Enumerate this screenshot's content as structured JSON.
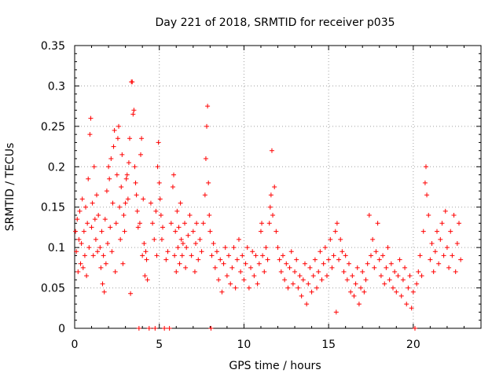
{
  "chart_data": {
    "type": "scatter",
    "title": "Day 221 of 2018, SRMTID for receiver p035",
    "xlabel": "GPS time / hours",
    "ylabel": "SRMTID / TECUs",
    "xlim": [
      0,
      24
    ],
    "ylim": [
      0,
      0.35
    ],
    "xticks": [
      "0",
      "5",
      "10",
      "15",
      "20"
    ],
    "yticks": [
      "0",
      "0.05",
      "0.1",
      "0.15",
      "0.2",
      "0.25",
      "0.3",
      "0.35"
    ],
    "grid": true,
    "marker": "plus",
    "color": "#ff0000",
    "series": [
      {
        "name": "SRMTID",
        "points": [
          [
            0.05,
            0.12
          ],
          [
            0.1,
            0.095
          ],
          [
            0.15,
            0.135
          ],
          [
            0.2,
            0.07
          ],
          [
            0.25,
            0.11
          ],
          [
            0.3,
            0.145
          ],
          [
            0.35,
            0.08
          ],
          [
            0.4,
            0.105
          ],
          [
            0.45,
            0.16
          ],
          [
            0.5,
            0.075
          ],
          [
            0.55,
            0.12
          ],
          [
            0.6,
            0.09
          ],
          [
            0.65,
            0.15
          ],
          [
            0.7,
            0.065
          ],
          [
            0.75,
            0.13
          ],
          [
            0.8,
            0.185
          ],
          [
            0.85,
            0.1
          ],
          [
            0.9,
            0.24
          ],
          [
            0.95,
            0.26
          ],
          [
            1.0,
            0.125
          ],
          [
            1.05,
            0.155
          ],
          [
            1.1,
            0.09
          ],
          [
            1.15,
            0.2
          ],
          [
            1.2,
            0.135
          ],
          [
            1.25,
            0.11
          ],
          [
            1.3,
            0.165
          ],
          [
            1.35,
            0.095
          ],
          [
            1.4,
            0.14
          ],
          [
            1.5,
            0.1
          ],
          [
            1.55,
            0.075
          ],
          [
            1.6,
            0.12
          ],
          [
            1.65,
            0.055
          ],
          [
            1.7,
            0.09
          ],
          [
            1.75,
            0.045
          ],
          [
            1.8,
            0.135
          ],
          [
            1.85,
            0.08
          ],
          [
            1.9,
            0.17
          ],
          [
            1.95,
            0.105
          ],
          [
            2.0,
            0.2
          ],
          [
            2.05,
            0.185
          ],
          [
            2.1,
            0.125
          ],
          [
            2.15,
            0.21
          ],
          [
            2.2,
            0.095
          ],
          [
            2.25,
            0.155
          ],
          [
            2.3,
            0.225
          ],
          [
            2.35,
            0.245
          ],
          [
            2.4,
            0.07
          ],
          [
            2.45,
            0.13
          ],
          [
            2.5,
            0.19
          ],
          [
            2.55,
            0.235
          ],
          [
            2.6,
            0.25
          ],
          [
            2.65,
            0.15
          ],
          [
            2.7,
            0.11
          ],
          [
            2.75,
            0.175
          ],
          [
            2.8,
            0.215
          ],
          [
            2.85,
            0.08
          ],
          [
            2.9,
            0.14
          ],
          [
            2.95,
            0.12
          ],
          [
            3.0,
            0.155
          ],
          [
            3.05,
            0.185
          ],
          [
            3.1,
            0.19
          ],
          [
            3.15,
            0.16
          ],
          [
            3.2,
            0.205
          ],
          [
            3.25,
            0.235
          ],
          [
            3.3,
            0.043
          ],
          [
            3.35,
            0.305
          ],
          [
            3.4,
            0.305
          ],
          [
            3.45,
            0.265
          ],
          [
            3.5,
            0.27
          ],
          [
            3.55,
            0.2
          ],
          [
            3.6,
            0.18
          ],
          [
            3.65,
            0.165
          ],
          [
            3.7,
            0.145
          ],
          [
            3.75,
            0.125
          ],
          [
            3.8,
            0.0
          ],
          [
            3.85,
            0.13
          ],
          [
            3.9,
            0.215
          ],
          [
            3.95,
            0.235
          ],
          [
            4.0,
            0.09
          ],
          [
            4.05,
            0.16
          ],
          [
            4.1,
            0.105
          ],
          [
            4.15,
            0.065
          ],
          [
            4.2,
            0.095
          ],
          [
            4.25,
            0.085
          ],
          [
            4.3,
            0.06
          ],
          [
            4.4,
            0.0
          ],
          [
            4.5,
            0.155
          ],
          [
            4.6,
            0.13
          ],
          [
            4.7,
            0.11
          ],
          [
            4.75,
            0.0
          ],
          [
            4.8,
            0.145
          ],
          [
            4.85,
            0.09
          ],
          [
            4.9,
            0.2
          ],
          [
            4.95,
            0.23
          ],
          [
            5.0,
            0.18
          ],
          [
            5.05,
            0.16
          ],
          [
            5.1,
            0.14
          ],
          [
            5.15,
            0.11
          ],
          [
            5.2,
            0.125
          ],
          [
            5.3,
            0.0
          ],
          [
            5.4,
            0.085
          ],
          [
            5.5,
            0.095
          ],
          [
            5.6,
            0.0
          ],
          [
            5.7,
            0.13
          ],
          [
            5.8,
            0.175
          ],
          [
            5.85,
            0.19
          ],
          [
            5.9,
            0.09
          ],
          [
            5.95,
            0.12
          ],
          [
            6.0,
            0.07
          ],
          [
            6.05,
            0.145
          ],
          [
            6.1,
            0.1
          ],
          [
            6.15,
            0.125
          ],
          [
            6.2,
            0.08
          ],
          [
            6.25,
            0.155
          ],
          [
            6.3,
            0.11
          ],
          [
            6.35,
            0.09
          ],
          [
            6.4,
            0.105
          ],
          [
            6.5,
            0.13
          ],
          [
            6.55,
            0.075
          ],
          [
            6.6,
            0.1
          ],
          [
            6.7,
            0.115
          ],
          [
            6.8,
            0.14
          ],
          [
            6.9,
            0.09
          ],
          [
            7.0,
            0.12
          ],
          [
            7.1,
            0.07
          ],
          [
            7.15,
            0.105
          ],
          [
            7.2,
            0.13
          ],
          [
            7.3,
            0.085
          ],
          [
            7.4,
            0.11
          ],
          [
            7.5,
            0.095
          ],
          [
            7.6,
            0.13
          ],
          [
            7.7,
            0.165
          ],
          [
            7.75,
            0.21
          ],
          [
            7.8,
            0.25
          ],
          [
            7.85,
            0.275
          ],
          [
            7.9,
            0.18
          ],
          [
            7.95,
            0.14
          ],
          [
            8.0,
            0.12
          ],
          [
            8.05,
            0.0
          ],
          [
            8.1,
            0.09
          ],
          [
            8.2,
            0.105
          ],
          [
            8.3,
            0.075
          ],
          [
            8.4,
            0.095
          ],
          [
            8.5,
            0.06
          ],
          [
            8.6,
            0.085
          ],
          [
            8.7,
            0.045
          ],
          [
            8.8,
            0.08
          ],
          [
            8.9,
            0.1
          ],
          [
            9.0,
            0.065
          ],
          [
            9.1,
            0.09
          ],
          [
            9.2,
            0.055
          ],
          [
            9.3,
            0.075
          ],
          [
            9.4,
            0.1
          ],
          [
            9.5,
            0.05
          ],
          [
            9.6,
            0.085
          ],
          [
            9.7,
            0.11
          ],
          [
            9.8,
            0.07
          ],
          [
            9.9,
            0.09
          ],
          [
            10.0,
            0.06
          ],
          [
            10.1,
            0.08
          ],
          [
            10.2,
            0.1
          ],
          [
            10.3,
            0.05
          ],
          [
            10.4,
            0.075
          ],
          [
            10.5,
            0.095
          ],
          [
            10.6,
            0.065
          ],
          [
            10.7,
            0.09
          ],
          [
            10.8,
            0.055
          ],
          [
            10.9,
            0.08
          ],
          [
            11.0,
            0.12
          ],
          [
            11.05,
            0.13
          ],
          [
            11.1,
            0.09
          ],
          [
            11.2,
            0.07
          ],
          [
            11.3,
            0.1
          ],
          [
            11.4,
            0.085
          ],
          [
            11.5,
            0.13
          ],
          [
            11.55,
            0.15
          ],
          [
            11.6,
            0.165
          ],
          [
            11.65,
            0.22
          ],
          [
            11.7,
            0.14
          ],
          [
            11.8,
            0.175
          ],
          [
            11.9,
            0.12
          ],
          [
            12.0,
            0.1
          ],
          [
            12.1,
            0.085
          ],
          [
            12.2,
            0.07
          ],
          [
            12.3,
            0.09
          ],
          [
            12.4,
            0.06
          ],
          [
            12.5,
            0.08
          ],
          [
            12.6,
            0.05
          ],
          [
            12.7,
            0.075
          ],
          [
            12.8,
            0.095
          ],
          [
            12.9,
            0.055
          ],
          [
            13.0,
            0.07
          ],
          [
            13.1,
            0.085
          ],
          [
            13.2,
            0.05
          ],
          [
            13.3,
            0.065
          ],
          [
            13.4,
            0.04
          ],
          [
            13.5,
            0.06
          ],
          [
            13.6,
            0.08
          ],
          [
            13.7,
            0.03
          ],
          [
            13.8,
            0.055
          ],
          [
            13.9,
            0.075
          ],
          [
            14.0,
            0.045
          ],
          [
            14.1,
            0.065
          ],
          [
            14.2,
            0.085
          ],
          [
            14.3,
            0.05
          ],
          [
            14.4,
            0.07
          ],
          [
            14.5,
            0.095
          ],
          [
            14.6,
            0.06
          ],
          [
            14.7,
            0.08
          ],
          [
            14.8,
            0.1
          ],
          [
            14.9,
            0.065
          ],
          [
            15.0,
            0.085
          ],
          [
            15.1,
            0.11
          ],
          [
            15.2,
            0.075
          ],
          [
            15.3,
            0.09
          ],
          [
            15.4,
            0.12
          ],
          [
            15.45,
            0.02
          ],
          [
            15.5,
            0.13
          ],
          [
            15.6,
            0.085
          ],
          [
            15.7,
            0.11
          ],
          [
            15.8,
            0.095
          ],
          [
            15.9,
            0.07
          ],
          [
            16.0,
            0.09
          ],
          [
            16.1,
            0.06
          ],
          [
            16.2,
            0.08
          ],
          [
            16.3,
            0.045
          ],
          [
            16.4,
            0.065
          ],
          [
            16.5,
            0.04
          ],
          [
            16.6,
            0.055
          ],
          [
            16.7,
            0.075
          ],
          [
            16.8,
            0.03
          ],
          [
            16.9,
            0.05
          ],
          [
            17.0,
            0.07
          ],
          [
            17.1,
            0.045
          ],
          [
            17.2,
            0.06
          ],
          [
            17.3,
            0.08
          ],
          [
            17.4,
            0.14
          ],
          [
            17.5,
            0.09
          ],
          [
            17.6,
            0.11
          ],
          [
            17.7,
            0.075
          ],
          [
            17.8,
            0.095
          ],
          [
            17.9,
            0.13
          ],
          [
            18.0,
            0.085
          ],
          [
            18.1,
            0.065
          ],
          [
            18.2,
            0.09
          ],
          [
            18.3,
            0.055
          ],
          [
            18.4,
            0.075
          ],
          [
            18.5,
            0.1
          ],
          [
            18.6,
            0.06
          ],
          [
            18.7,
            0.08
          ],
          [
            18.8,
            0.05
          ],
          [
            18.9,
            0.07
          ],
          [
            19.0,
            0.045
          ],
          [
            19.1,
            0.065
          ],
          [
            19.2,
            0.085
          ],
          [
            19.3,
            0.04
          ],
          [
            19.4,
            0.06
          ],
          [
            19.5,
            0.075
          ],
          [
            19.6,
            0.03
          ],
          [
            19.7,
            0.05
          ],
          [
            19.8,
            0.065
          ],
          [
            19.9,
            0.025
          ],
          [
            20.0,
            0.045
          ],
          [
            20.1,
            0.0
          ],
          [
            20.2,
            0.055
          ],
          [
            20.3,
            0.07
          ],
          [
            20.4,
            0.09
          ],
          [
            20.5,
            0.065
          ],
          [
            20.6,
            0.12
          ],
          [
            20.7,
            0.18
          ],
          [
            20.75,
            0.2
          ],
          [
            20.8,
            0.165
          ],
          [
            20.9,
            0.14
          ],
          [
            21.0,
            0.085
          ],
          [
            21.1,
            0.105
          ],
          [
            21.2,
            0.07
          ],
          [
            21.3,
            0.095
          ],
          [
            21.4,
            0.12
          ],
          [
            21.5,
            0.08
          ],
          [
            21.6,
            0.11
          ],
          [
            21.7,
            0.13
          ],
          [
            21.8,
            0.09
          ],
          [
            21.9,
            0.145
          ],
          [
            22.0,
            0.1
          ],
          [
            22.1,
            0.075
          ],
          [
            22.2,
            0.12
          ],
          [
            22.3,
            0.09
          ],
          [
            22.4,
            0.14
          ],
          [
            22.5,
            0.07
          ],
          [
            22.6,
            0.105
          ],
          [
            22.7,
            0.13
          ],
          [
            22.8,
            0.085
          ]
        ]
      }
    ]
  }
}
